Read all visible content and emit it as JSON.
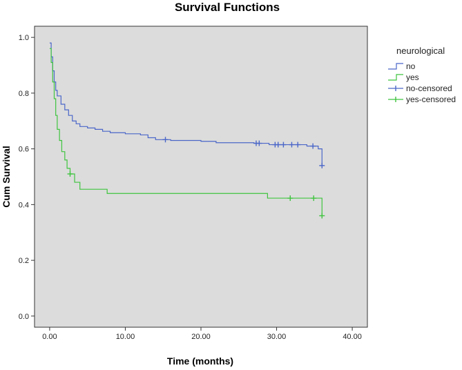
{
  "chart_data": {
    "type": "line",
    "subtype": "kaplan-meier step",
    "title": "Survival Functions",
    "xlabel": "Time (months)",
    "ylabel": "Cum Survival",
    "xlim": [
      -2,
      42
    ],
    "ylim": [
      -0.04,
      1.04
    ],
    "x_ticks": [
      "0.00",
      "10.00",
      "20.00",
      "30.00",
      "40.00"
    ],
    "x_tick_values": [
      0,
      10,
      20,
      30,
      40
    ],
    "y_ticks": [
      "0.0",
      "0.2",
      "0.4",
      "0.6",
      "0.8",
      "1.0"
    ],
    "y_tick_values": [
      0,
      0.2,
      0.4,
      0.6,
      0.8,
      1.0
    ],
    "grid": false,
    "legend": {
      "title": "neurological",
      "position": "right",
      "entries": [
        "no",
        "yes",
        "no-censored",
        "yes-censored"
      ]
    },
    "colors": {
      "plot_background": "#dcdcdc",
      "no": "#4a66c8",
      "yes": "#3ec43e"
    },
    "series": [
      {
        "name": "no",
        "color": "#4a66c8",
        "points": [
          [
            0,
            0.98
          ],
          [
            0.2,
            0.93
          ],
          [
            0.4,
            0.88
          ],
          [
            0.6,
            0.84
          ],
          [
            0.8,
            0.81
          ],
          [
            1.0,
            0.79
          ],
          [
            1.5,
            0.76
          ],
          [
            2.0,
            0.74
          ],
          [
            2.5,
            0.72
          ],
          [
            3.0,
            0.7
          ],
          [
            3.5,
            0.69
          ],
          [
            4.0,
            0.68
          ],
          [
            5.0,
            0.675
          ],
          [
            6.0,
            0.67
          ],
          [
            7.0,
            0.663
          ],
          [
            8.0,
            0.658
          ],
          [
            10.0,
            0.654
          ],
          [
            12.0,
            0.65
          ],
          [
            13.0,
            0.64
          ],
          [
            14.0,
            0.633
          ],
          [
            16.0,
            0.63
          ],
          [
            20.0,
            0.627
          ],
          [
            22.0,
            0.622
          ],
          [
            27.0,
            0.62
          ],
          [
            29.0,
            0.615
          ],
          [
            34.0,
            0.61
          ],
          [
            35.5,
            0.6
          ],
          [
            36.0,
            0.54
          ]
        ],
        "censored": [
          15.3,
          27.3,
          27.7,
          29.8,
          30.2,
          30.9,
          32.0,
          32.8,
          34.8,
          36.0
        ]
      },
      {
        "name": "yes",
        "color": "#3ec43e",
        "points": [
          [
            0,
            0.96
          ],
          [
            0.2,
            0.91
          ],
          [
            0.4,
            0.84
          ],
          [
            0.6,
            0.78
          ],
          [
            0.8,
            0.72
          ],
          [
            1.0,
            0.67
          ],
          [
            1.3,
            0.63
          ],
          [
            1.6,
            0.59
          ],
          [
            2.0,
            0.56
          ],
          [
            2.3,
            0.53
          ],
          [
            2.7,
            0.51
          ],
          [
            3.3,
            0.48
          ],
          [
            4.0,
            0.455
          ],
          [
            7.6,
            0.44
          ],
          [
            28.8,
            0.423
          ],
          [
            35.8,
            0.423
          ],
          [
            36.0,
            0.36
          ]
        ],
        "censored": [
          2.7,
          31.8,
          34.9,
          36.0
        ]
      }
    ]
  }
}
